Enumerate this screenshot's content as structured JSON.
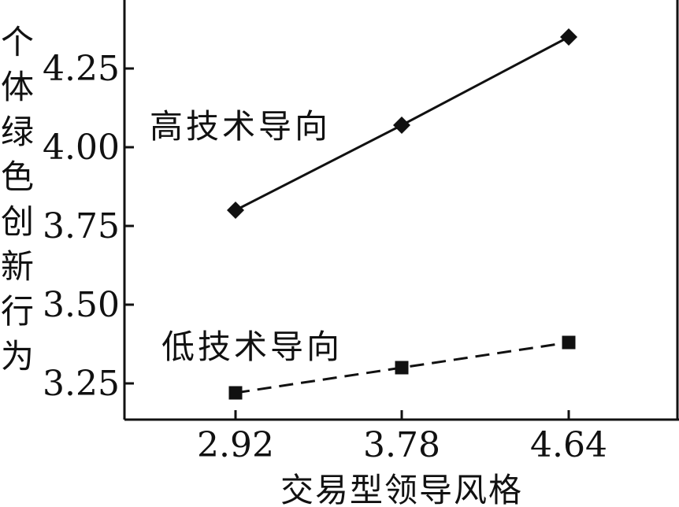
{
  "chart_data": {
    "type": "line",
    "xlabel": "交易型领导风格",
    "ylabel": "个体绿色创新行为",
    "categories": [
      "2.92",
      "3.78",
      "4.64"
    ],
    "yticks": [
      "3.25",
      "3.50",
      "3.75",
      "4.00",
      "4.25"
    ],
    "ylim": [
      3.15,
      4.45
    ],
    "series": [
      {
        "name": "高技术导向",
        "values": [
          3.8,
          4.07,
          4.35
        ],
        "marker": "diamond",
        "line": "solid"
      },
      {
        "name": "低技术导向",
        "values": [
          3.22,
          3.3,
          3.38
        ],
        "marker": "square",
        "line": "dashed"
      }
    ],
    "grid": false,
    "legend": "inline labels"
  }
}
